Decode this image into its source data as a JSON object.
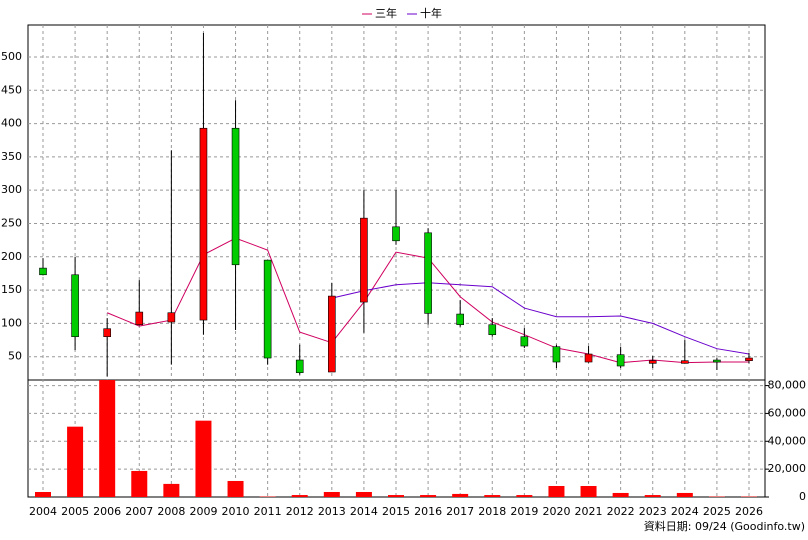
{
  "chart_data": {
    "type": "candlestick",
    "legend": [
      "三年",
      "十年"
    ],
    "footer": "資料日期: 09/24 (Goodinfo.tw)",
    "categories": [
      "2004",
      "2005",
      "2006",
      "2007",
      "2008",
      "2009",
      "2010",
      "2011",
      "2012",
      "2013",
      "2014",
      "2015",
      "2016",
      "2017",
      "2018",
      "2019",
      "2020",
      "2021",
      "2022",
      "2023",
      "2024",
      "2025",
      "2026"
    ],
    "up_color": "#ff0000",
    "down_color": "#00cc00",
    "open": [
      183,
      173,
      80,
      98,
      102,
      105,
      393,
      195,
      45,
      27,
      132,
      245,
      236,
      114,
      98,
      80,
      65,
      42,
      53,
      40,
      40,
      45,
      44
    ],
    "close": [
      173,
      80,
      92,
      117,
      116,
      393,
      188,
      48,
      26,
      141,
      258,
      224,
      115,
      98,
      83,
      66,
      42,
      54,
      36,
      44,
      44,
      42,
      48
    ],
    "high": [
      198,
      200,
      108,
      165,
      360,
      536,
      435,
      195,
      68,
      161,
      300,
      300,
      243,
      135,
      108,
      93,
      68,
      66,
      65,
      51,
      75,
      48,
      56
    ],
    "low": [
      172,
      60,
      20,
      97,
      38,
      83,
      90,
      38,
      23,
      27,
      86,
      218,
      98,
      95,
      80,
      63,
      33,
      41,
      33,
      33,
      40,
      30,
      40
    ],
    "ylim": [
      15,
      548
    ],
    "yticks": [
      50,
      100,
      150,
      200,
      250,
      300,
      350,
      400,
      450,
      500
    ],
    "series": [
      {
        "name": "三年",
        "color": "#d00060",
        "values": [
          null,
          null,
          116,
          96,
          105,
          203,
          228,
          210,
          87,
          71,
          132,
          207,
          198,
          140,
          102,
          83,
          63,
          54,
          41,
          45,
          41,
          42,
          42
        ]
      },
      {
        "name": "十年",
        "color": "#6a00cc",
        "values": [
          null,
          null,
          null,
          null,
          null,
          null,
          null,
          null,
          null,
          138,
          149,
          158,
          161,
          158,
          155,
          123,
          110,
          110,
          111,
          100,
          80,
          62,
          54
        ]
      }
    ],
    "volume": {
      "color": "#ff0000",
      "values": [
        3600,
        50500,
        84000,
        18700,
        9400,
        54800,
        11500,
        300,
        1400,
        3600,
        3600,
        1400,
        1400,
        2200,
        1400,
        1400,
        7900,
        7900,
        2900,
        1400,
        2900,
        300,
        300
      ],
      "ylim": [
        0,
        84000
      ],
      "yticks": [
        0,
        {
          "value": 20000,
          "label": "20,000"
        },
        {
          "value": 40000,
          "label": "40,000"
        },
        {
          "value": 60000,
          "label": "60,000"
        },
        {
          "value": 80000,
          "label": "80,000"
        }
      ]
    },
    "grid": true
  }
}
